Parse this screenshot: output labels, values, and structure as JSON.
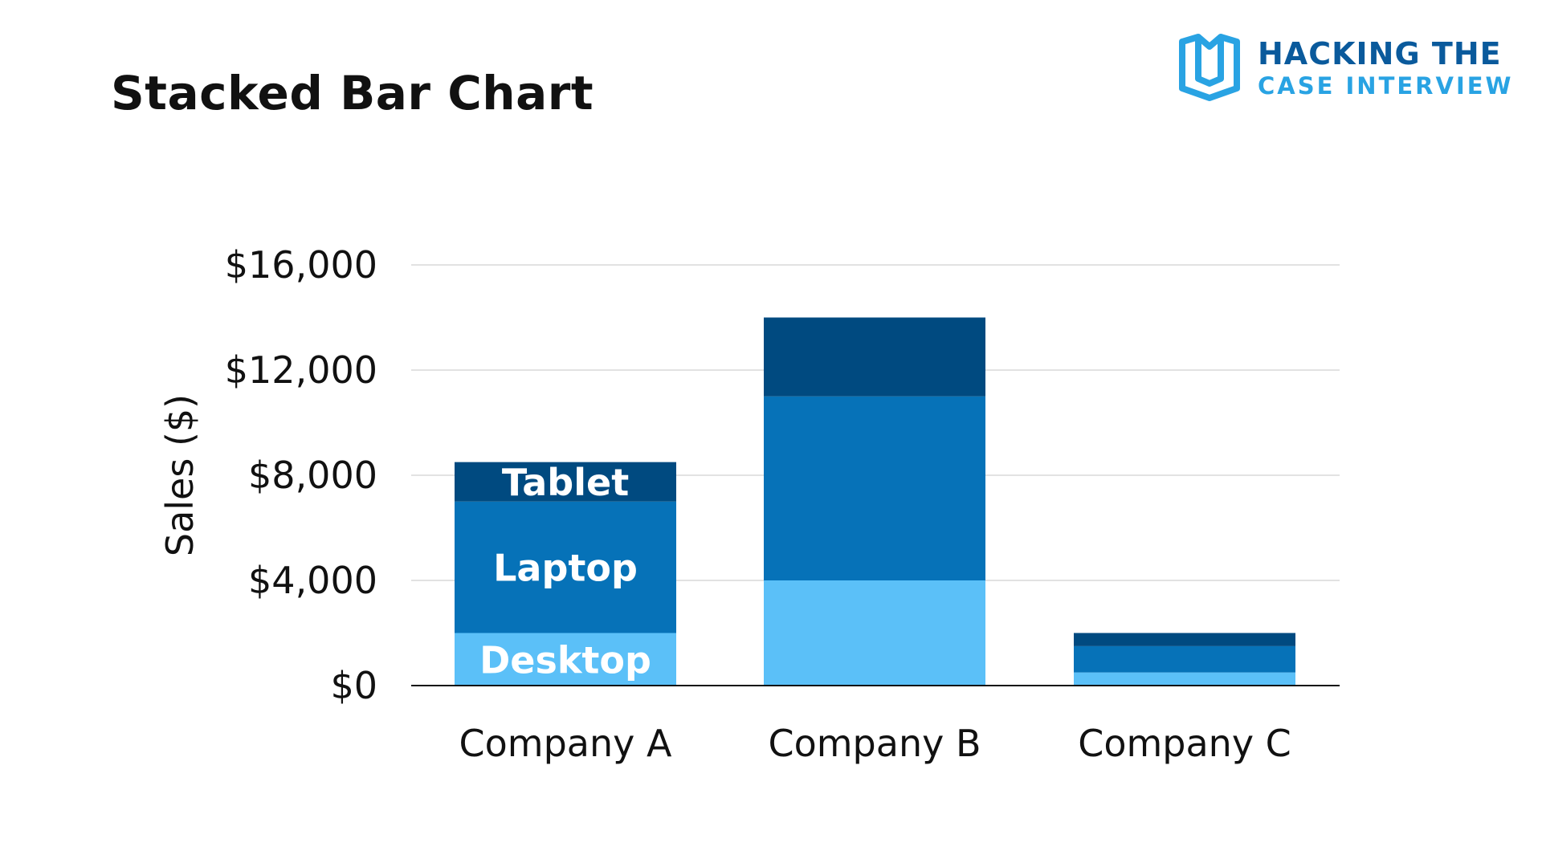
{
  "page": {
    "title": "Stacked Bar Chart"
  },
  "brand": {
    "line1": "HACKING THE",
    "line2": "CASE INTERVIEW",
    "dark_color": "#0a5a9c",
    "light_color": "#29a3e3",
    "icon": "open-book-icon"
  },
  "chart_data": {
    "type": "bar",
    "stacked": true,
    "title": "Stacked Bar Chart",
    "xlabel": "",
    "ylabel": "Sales ($)",
    "categories": [
      "Company A",
      "Company B",
      "Company C"
    ],
    "series": [
      {
        "name": "Desktop",
        "values": [
          2000,
          4000,
          500
        ],
        "color": "#5bc0f8"
      },
      {
        "name": "Laptop",
        "values": [
          5000,
          7000,
          1000
        ],
        "color": "#0672b8"
      },
      {
        "name": "Tablet",
        "values": [
          1500,
          3000,
          500
        ],
        "color": "#004a80"
      }
    ],
    "ylim": [
      0,
      16000
    ],
    "yticks": [
      0,
      4000,
      8000,
      12000,
      16000
    ],
    "ytick_labels": [
      "$0",
      "$4,000",
      "$8,000",
      "$12,000",
      "$16,000"
    ],
    "grid": true,
    "gridline_color": "#d9d9d9",
    "axis_color": "#111111",
    "segment_labels_on_category": 0
  }
}
